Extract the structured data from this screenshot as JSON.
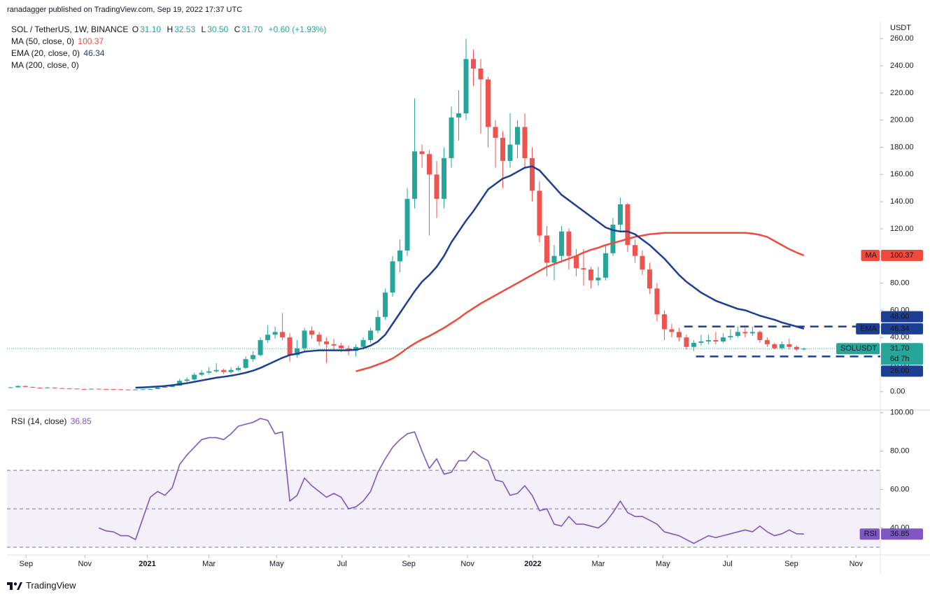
{
  "header": {
    "published": "ranadagger published on TradingView.com, Sep 19, 2022 17:37 UTC",
    "symbol": "SOL / TetherUS, 1W, BINANCE",
    "ohlc": [
      {
        "key": "O",
        "value": "31.10"
      },
      {
        "key": "H",
        "value": "32.53"
      },
      {
        "key": "L",
        "value": "30.50"
      },
      {
        "key": "C",
        "value": "31.70"
      }
    ],
    "change": "+0.60 (+1.93%)",
    "footer": "TradingView"
  },
  "chart_data": [
    {
      "type": "candlestick",
      "categories": [
        null,
        null,
        null,
        null,
        null,
        null,
        null,
        null,
        null,
        null,
        null,
        null,
        null,
        null,
        null,
        null,
        null,
        null,
        null,
        null,
        null,
        null,
        null,
        null,
        null,
        null,
        null,
        null,
        null,
        null,
        null,
        null,
        null,
        null,
        null,
        null,
        null,
        null,
        null,
        null,
        null,
        null,
        null,
        null,
        null,
        null,
        null,
        null,
        null,
        null,
        null,
        null,
        null,
        null,
        null,
        null,
        null,
        null,
        null,
        null,
        null,
        null,
        null,
        null,
        null,
        null,
        null,
        null,
        null,
        null,
        null,
        null,
        null,
        null,
        null,
        null,
        null,
        null,
        null,
        null,
        null,
        null,
        null,
        null,
        null,
        null,
        null,
        null,
        null,
        null,
        null,
        null,
        null,
        null,
        null,
        null,
        null,
        null,
        null,
        null,
        null,
        null,
        null,
        null,
        null,
        null,
        null,
        null,
        null
      ],
      "open": [
        2.9,
        3.2,
        4.2,
        3.5,
        3,
        2.9,
        3.1,
        2.6,
        2.4,
        2.3,
        2,
        1.9,
        2.2,
        2,
        1.9,
        1.8,
        1.6,
        1.5,
        1.6,
        1.8,
        2,
        3,
        3.5,
        4.5,
        8,
        9,
        12.5,
        14,
        15,
        16,
        14.5,
        16,
        17.5,
        24,
        27,
        38,
        42,
        44,
        40,
        27,
        32,
        45,
        42,
        37,
        35,
        34,
        32,
        30,
        33,
        38,
        45,
        55,
        73,
        96,
        104,
        142,
        177,
        175,
        160,
        142,
        172,
        202,
        205,
        245,
        238,
        230,
        195,
        187,
        170,
        182,
        195,
        172,
        148,
        115,
        95,
        100,
        118,
        100,
        91,
        90,
        82,
        84,
        102,
        123,
        138,
        108,
        100,
        90,
        76,
        57,
        46,
        44,
        40,
        33,
        36,
        37,
        38,
        37,
        40,
        41,
        44,
        43,
        44,
        38,
        35,
        32,
        35,
        33,
        31.1
      ],
      "high": [
        3.5,
        4.7,
        4.4,
        3.7,
        3.2,
        3.4,
        3.2,
        2.8,
        2.6,
        2.4,
        2.2,
        2.4,
        2.3,
        2.1,
        2,
        1.9,
        1.7,
        1.8,
        2,
        2.3,
        3.5,
        4,
        5,
        9.5,
        10.5,
        14,
        16,
        18,
        21,
        17,
        18,
        19,
        26,
        30,
        40,
        49,
        48,
        58,
        43,
        38,
        47,
        48,
        44,
        40,
        39,
        36,
        34,
        35,
        40,
        47,
        60,
        76,
        100,
        112,
        150,
        216,
        182,
        178,
        170,
        180,
        210,
        222,
        260,
        252,
        245,
        232,
        200,
        192,
        205,
        200,
        205,
        180,
        155,
        122,
        108,
        122,
        120,
        105,
        105,
        92,
        92,
        108,
        128,
        143,
        139,
        112,
        104,
        95,
        80,
        60,
        50,
        47,
        42,
        38,
        42,
        42,
        44,
        43,
        46,
        48,
        47,
        48,
        45,
        40,
        36,
        37,
        39,
        34,
        32.53
      ],
      "low": [
        2.7,
        3,
        3.2,
        2.8,
        2.6,
        2.7,
        2.4,
        2.2,
        2.1,
        1.8,
        1.7,
        1.8,
        1.8,
        1.7,
        1.6,
        1.4,
        1.3,
        1.4,
        1.5,
        1.7,
        1.9,
        2.8,
        3.3,
        4.3,
        7.2,
        8.5,
        11.5,
        13,
        14,
        13,
        13.5,
        15,
        17,
        22,
        26,
        36,
        39,
        38,
        22,
        25,
        30,
        39,
        34,
        21,
        31,
        29,
        27,
        26,
        31,
        36,
        43,
        53,
        70,
        88,
        100,
        135,
        165,
        115,
        128,
        135,
        165,
        185,
        200,
        225,
        190,
        180,
        165,
        150,
        165,
        172,
        165,
        140,
        110,
        85,
        82,
        95,
        90,
        85,
        78,
        76,
        78,
        82,
        100,
        118,
        103,
        95,
        86,
        72,
        52,
        38,
        40,
        37,
        31,
        30,
        34,
        35,
        35,
        36,
        38,
        40,
        40,
        41,
        36,
        33,
        31,
        31,
        31,
        30,
        30.5
      ],
      "close": [
        3.2,
        4.2,
        3.5,
        3,
        2.9,
        3.1,
        2.6,
        2.4,
        2.3,
        2,
        1.9,
        2.2,
        2,
        1.9,
        1.8,
        1.6,
        1.5,
        1.6,
        1.8,
        2,
        3,
        3.5,
        4.5,
        8,
        9,
        12.5,
        14,
        15,
        16,
        14.5,
        16,
        17.5,
        24,
        27,
        38,
        42,
        44,
        40,
        27,
        32,
        45,
        42,
        37,
        35,
        34,
        32,
        30,
        33,
        38,
        45,
        55,
        73,
        96,
        104,
        142,
        177,
        175,
        160,
        142,
        172,
        202,
        205,
        245,
        238,
        230,
        195,
        187,
        170,
        182,
        195,
        172,
        148,
        115,
        95,
        100,
        118,
        100,
        91,
        90,
        82,
        84,
        102,
        123,
        138,
        108,
        100,
        90,
        76,
        57,
        46,
        44,
        40,
        33,
        36,
        37,
        38,
        37,
        40,
        41,
        44,
        43,
        44,
        38,
        35,
        32,
        35,
        33,
        31.1,
        31.7
      ],
      "up_color": "#26a69a",
      "down_color": "#ef5350",
      "last_label": "31.70",
      "countdown": "6d 7h",
      "symbol_tag": "SOLUSDT",
      "xlim": [
        -0.5,
        118.4
      ],
      "xticks": [
        {
          "value": 2.1,
          "label": "Sep"
        },
        {
          "value": 10.1,
          "label": "Nov"
        },
        {
          "value": 18.6,
          "label": "2021"
        },
        {
          "value": 27,
          "label": "Mar"
        },
        {
          "value": 36.2,
          "label": "May"
        },
        {
          "value": 45.1,
          "label": "Jul"
        },
        {
          "value": 54.2,
          "label": "Sep"
        },
        {
          "value": 62.2,
          "label": "Nov"
        },
        {
          "value": 71.1,
          "label": "2022"
        },
        {
          "value": 80,
          "label": "Mar"
        },
        {
          "value": 88.8,
          "label": "May"
        },
        {
          "value": 97.6,
          "label": "Jul"
        },
        {
          "value": 106.3,
          "label": "Sep"
        },
        {
          "value": 115.1,
          "label": "Nov"
        }
      ],
      "ylim": [
        -13,
        272
      ],
      "y_axis_label": "USDT",
      "yticks": [
        {
          "value": 0,
          "label": "0.00"
        },
        {
          "value": 20,
          "label": "20.00"
        },
        {
          "value": 40,
          "label": "40.00"
        },
        {
          "value": 60,
          "label": "60.00"
        },
        {
          "value": 80,
          "label": "80.00"
        },
        {
          "value": 100,
          "label": "100.00"
        },
        {
          "value": 120,
          "label": "120.00"
        },
        {
          "value": 140,
          "label": "140.00"
        },
        {
          "value": 160,
          "label": "160.00"
        },
        {
          "value": 180,
          "label": "180.00"
        },
        {
          "value": 200,
          "label": "200.00"
        },
        {
          "value": 220,
          "label": "220.00"
        },
        {
          "value": 240,
          "label": "240.00"
        },
        {
          "value": 260,
          "label": "260.00"
        }
      ],
      "series": [
        {
          "name": "MA (50, close, 0)",
          "tag": "MA",
          "color": "#ef4b3c",
          "last_label": "100.37",
          "values": [
            null,
            null,
            null,
            null,
            null,
            null,
            null,
            null,
            null,
            null,
            null,
            null,
            null,
            null,
            null,
            null,
            null,
            null,
            null,
            null,
            null,
            null,
            null,
            null,
            null,
            null,
            null,
            null,
            null,
            null,
            null,
            null,
            null,
            null,
            null,
            null,
            null,
            null,
            null,
            null,
            null,
            null,
            null,
            null,
            null,
            null,
            null,
            15,
            16.5,
            18,
            20,
            22,
            24.5,
            28,
            32,
            35.5,
            38.5,
            41,
            44,
            47,
            50.5,
            54,
            58,
            61.5,
            65,
            68,
            71,
            74,
            77,
            80,
            83,
            86,
            89,
            92,
            94,
            96,
            98,
            100,
            102.5,
            104.5,
            106,
            108,
            109.5,
            111,
            112.5,
            114,
            115,
            116,
            116.5,
            117,
            117,
            117,
            117,
            117,
            117,
            117,
            117,
            117,
            117,
            117,
            117,
            116.5,
            115.5,
            114,
            111,
            108,
            105,
            102.5,
            100.37
          ]
        },
        {
          "name": "EMA (20, close, 0)",
          "tag": "EMA",
          "color": "#1c3f94",
          "last_label": "46.34",
          "values": [
            null,
            null,
            null,
            null,
            null,
            null,
            null,
            null,
            null,
            null,
            null,
            null,
            null,
            null,
            null,
            null,
            null,
            3,
            3.2,
            3.5,
            3.8,
            4.2,
            4.8,
            5.5,
            6.3,
            7.3,
            8.3,
            9.3,
            10.3,
            11,
            11.8,
            12.8,
            14,
            15.5,
            17.5,
            20,
            22.5,
            25,
            27,
            28,
            29.5,
            30,
            30.5,
            30.5,
            30.5,
            30.5,
            30.5,
            31,
            32,
            34,
            37,
            42,
            50,
            58,
            66,
            74,
            81,
            86,
            92,
            100,
            110,
            118,
            126,
            133,
            141,
            149,
            153,
            157,
            159,
            162,
            165,
            166,
            163,
            157,
            151,
            145,
            141,
            137,
            133,
            129,
            125,
            121,
            119,
            118,
            118,
            116,
            112,
            108,
            103,
            98,
            92,
            86,
            81,
            77,
            73,
            70,
            67,
            65,
            63,
            61,
            60,
            58,
            56,
            54.5,
            53,
            51,
            49.5,
            48,
            46.34
          ]
        },
        {
          "name": "MA (200, close, 0)"
        }
      ],
      "levels": [
        {
          "value": 48,
          "label": "48.00"
        },
        {
          "value": 26,
          "label": "26.00"
        }
      ],
      "level_color": "#1c3f94"
    },
    {
      "type": "line",
      "title": "RSI (14, close)",
      "name": "RSI",
      "color": "#7e57c2",
      "last_label": "36.85",
      "values": [
        null,
        null,
        null,
        null,
        null,
        null,
        null,
        null,
        null,
        null,
        null,
        null,
        40,
        38.5,
        38,
        36,
        36,
        34,
        45,
        56,
        59,
        57,
        61,
        73,
        78,
        82,
        86,
        87,
        87,
        86,
        89,
        93,
        94,
        95,
        97,
        96,
        89,
        90,
        54,
        57,
        66,
        62,
        59,
        56,
        58,
        56,
        50,
        51,
        54,
        59,
        69,
        76,
        82,
        86,
        89,
        90,
        80,
        71,
        76,
        68,
        69,
        75,
        75,
        80,
        77,
        75,
        65,
        64,
        57,
        58,
        62,
        57,
        49,
        50,
        42,
        41,
        46,
        42,
        42,
        41,
        40,
        43,
        48,
        54,
        48,
        46,
        46,
        44,
        42,
        38,
        37,
        36,
        34,
        32,
        34,
        36,
        35,
        36,
        37,
        38,
        39,
        38,
        41,
        38,
        36,
        37,
        39,
        37,
        36.85
      ],
      "ylim": [
        26,
        101
      ],
      "yticks": [
        {
          "value": 40,
          "label": "40.00"
        },
        {
          "value": 60,
          "label": "60.00"
        },
        {
          "value": 80,
          "label": "80.00"
        },
        {
          "value": 100,
          "label": "100.00"
        }
      ],
      "levels": [
        70,
        50,
        30
      ]
    }
  ]
}
